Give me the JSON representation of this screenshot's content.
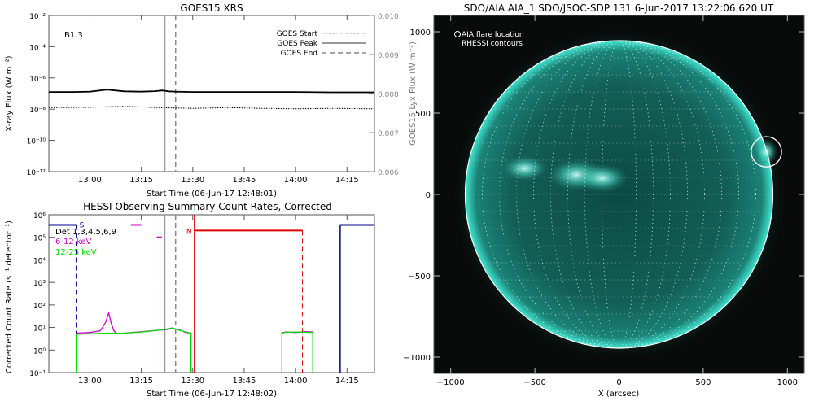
{
  "goes_panel": {
    "title": "GOES15 XRS",
    "class_label": "B1.3",
    "xlabel": "Start Time (06-Jun-17 12:48:01)",
    "ylabel_left": "X-ray Flux (W m⁻²)",
    "ylabel_right": "GOES15 Lyx Flux (W m⁻²)",
    "legend": [
      "GOES Start",
      "GOES Peak",
      "GOES End"
    ],
    "colors": {
      "axis": "#555555",
      "curve": "#000000",
      "start": "#888888",
      "peak": "#999999",
      "end": "#888888"
    }
  },
  "hessi_panel": {
    "title": "HESSI Observing Summary Count Rates, Corrected",
    "xlabel": "Start Time (06-Jun-17 12:48:02)",
    "ylabel": "Corrected Count Rate (s⁻¹ detector⁻¹)",
    "det_label": "Det 1,3,4,5,6,9",
    "legend": [
      {
        "label": "6-12 keV",
        "color": "#cc00cc"
      },
      {
        "label": "12-25 keV",
        "color": "#00dd00"
      }
    ],
    "markers": {
      "s": "S",
      "n": "N"
    },
    "colors": {
      "low": "#cc00cc",
      "high": "#00dd00",
      "saa": "#00008b",
      "night": "#dd0000"
    }
  },
  "aia_panel": {
    "title": "SDO/AIA AIA_1 SDO/JSOC-SDP 131  6-Jun-2017 13:22:06.620 UT",
    "legend_flare": "AIA flare location",
    "legend_rhessi": "RHESSI contours",
    "xlabel": "X (arcsec)",
    "colors": {
      "disk": "#0f5a52",
      "limb": "#2fd6c4",
      "circle": "#ffffff"
    }
  },
  "chart_data": [
    {
      "type": "line",
      "title": "GOES15 XRS",
      "xlabel": "Start Time (06-Jun-17 12:48:01)",
      "ylabel": "X-ray Flux (W m⁻²)",
      "y2label": "GOES15 Lyx Flux (W m⁻²)",
      "x_ticks": [
        "13:00",
        "13:15",
        "13:30",
        "13:45",
        "14:00",
        "14:15"
      ],
      "x_tick_minutes": [
        0,
        15,
        30,
        45,
        60,
        75
      ],
      "xlim_minutes": [
        -11.98,
        83
      ],
      "y_scale": "log",
      "y_ticks": [
        "10⁻²",
        "10⁻⁴",
        "10⁻⁶",
        "10⁻⁸",
        "10⁻¹⁰",
        "10⁻¹²"
      ],
      "y_tick_exponents": [
        -2,
        -4,
        -6,
        -8,
        -10,
        -12
      ],
      "ylim_exponent": [
        -12,
        -2
      ],
      "y2_ticks": [
        "0.010",
        "0.009",
        "0.008",
        "0.007",
        "0.006"
      ],
      "y2lim": [
        0.006,
        0.01
      ],
      "series": [
        {
          "name": "",
          "style": "solid",
          "t": [
            -12,
            -5,
            0,
            5,
            10,
            15,
            19,
            21,
            23,
            25,
            30,
            40,
            50,
            60,
            70,
            83
          ],
          "log_flux": [
            -6.9,
            -6.9,
            -6.88,
            -6.75,
            -6.86,
            -6.88,
            -6.85,
            -6.8,
            -6.86,
            -6.88,
            -6.9,
            -6.9,
            -6.9,
            -6.9,
            -6.92,
            -6.92
          ]
        },
        {
          "name": "",
          "style": "dotted",
          "t": [
            -12,
            0,
            10,
            20,
            30,
            40,
            50,
            60,
            70,
            83
          ],
          "log_flux": [
            -7.9,
            -7.88,
            -7.82,
            -7.9,
            -7.95,
            -7.9,
            -7.95,
            -7.98,
            -7.95,
            -7.98
          ]
        }
      ],
      "vlines_minutes": {
        "start": [
          19
        ],
        "peak": [
          21.8
        ],
        "end": [
          25
        ]
      },
      "legend": [
        "GOES Start",
        "GOES Peak",
        "GOES End"
      ],
      "annotation": "B1.3"
    },
    {
      "type": "line",
      "title": "HESSI Observing Summary Count Rates, Corrected",
      "xlabel": "Start Time (06-Jun-17 12:48:02)",
      "ylabel": "Corrected Count Rate (s⁻¹ detector⁻¹)",
      "x_ticks": [
        "13:00",
        "13:15",
        "13:30",
        "13:45",
        "14:00",
        "14:15"
      ],
      "x_tick_minutes": [
        0,
        15,
        30,
        45,
        60,
        75
      ],
      "xlim_minutes": [
        -11.97,
        83
      ],
      "y_scale": "log",
      "y_ticks": [
        "10⁶",
        "10⁵",
        "10⁴",
        "10³",
        "10²",
        "10¹",
        "10⁰",
        "10⁻¹"
      ],
      "y_tick_exponents": [
        6,
        5,
        4,
        3,
        2,
        1,
        0,
        -1
      ],
      "ylim_exponent": [
        -1,
        6
      ],
      "series": [
        {
          "name": "6-12 keV",
          "color": "#cc00cc",
          "segments": [
            {
              "t": [
                -4,
                0,
                3,
                4.5,
                5.5,
                6.2,
                7,
                8,
                10,
                14,
                18,
                20,
                22,
                24,
                26,
                28,
                29.5,
                29.5
              ],
              "log_rate": [
                0.75,
                0.78,
                0.85,
                1.2,
                1.65,
                1.2,
                0.85,
                0.72,
                0.75,
                0.8,
                0.85,
                0.88,
                0.9,
                0.95,
                0.9,
                0.78,
                0.75,
                -1
              ]
            },
            {
              "t": [
                56,
                57,
                60,
                63,
                65
              ],
              "log_rate": [
                0.75,
                0.8,
                0.78,
                0.82,
                0.8
              ]
            }
          ]
        },
        {
          "name": "12-25 keV",
          "color": "#00dd00",
          "segments": [
            {
              "t": [
                -4,
                -4,
                0,
                5,
                10,
                15,
                20,
                22,
                24,
                26,
                28,
                29.5,
                29.5
              ],
              "log_rate": [
                -1,
                0.7,
                0.72,
                0.75,
                0.75,
                0.8,
                0.88,
                0.92,
                0.98,
                0.88,
                0.8,
                0.75,
                -1
              ]
            },
            {
              "t": [
                56,
                56,
                60,
                65,
                65
              ],
              "log_rate": [
                -1,
                0.78,
                0.8,
                0.78,
                -1
              ]
            }
          ]
        }
      ],
      "intervals": [
        {
          "label": "S",
          "color": "#00008b",
          "t_start": -12,
          "t_end": -4,
          "log_level": 5.55
        },
        {
          "label": "",
          "color": "#00008b",
          "t_start": 73,
          "t_end": 83,
          "log_level": 5.55
        },
        {
          "label": "N",
          "color": "#dd0000",
          "t_start": 30.5,
          "t_end": 62,
          "log_level": 5.3
        }
      ],
      "legend": [
        "6-12 keV",
        "12-25 keV"
      ]
    },
    {
      "type": "heatmap",
      "title": "SDO/AIA AIA_1 SDO/JSOC-SDP 131  6-Jun-2017 13:22:06.620 UT",
      "xlabel": "X (arcsec)",
      "x_ticks": [
        "−1000",
        "−500",
        "0",
        "500",
        "1000"
      ],
      "x_tick_values": [
        -1000,
        -500,
        0,
        500,
        1000
      ],
      "y_ticks": [
        "1000",
        "500",
        "0",
        "−500",
        "−1000"
      ],
      "y_tick_values": [
        1000,
        500,
        0,
        -500,
        -1000
      ],
      "xlim": [
        -1100,
        1100
      ],
      "ylim": [
        -1100,
        1100
      ],
      "solar_radius_arcsec": 945,
      "active_regions": [
        {
          "x": -560,
          "y": 160,
          "strength": 0.7
        },
        {
          "x": -250,
          "y": 120,
          "strength": 0.9
        },
        {
          "x": -100,
          "y": 100,
          "strength": 0.8
        }
      ],
      "flare_location": {
        "x": 875,
        "y": 262,
        "radius": 90
      },
      "legend": [
        "AIA flare location",
        "RHESSI contours"
      ]
    }
  ]
}
